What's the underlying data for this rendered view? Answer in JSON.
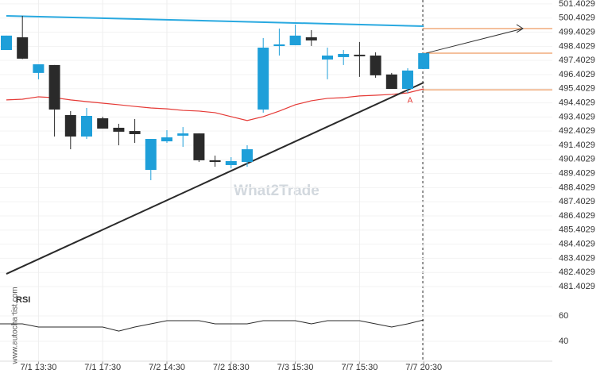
{
  "chart_data": {
    "type": "candlestick",
    "watermark": "What2Trade",
    "source": "www.autochartist.com",
    "categories": [
      null,
      null,
      "7/1 13:30",
      null,
      null,
      null,
      "7/1 17:30",
      null,
      null,
      null,
      "7/2 14:30",
      null,
      null,
      null,
      "7/2 18:30",
      null,
      null,
      null,
      "7/3 15:30",
      null,
      null,
      null,
      "7/7 15:30",
      null,
      null,
      null,
      "7/7 20:30"
    ],
    "open": [
      498.14,
      499.04,
      496.52,
      497.08,
      493.54,
      492.02,
      493.31,
      492.64,
      492.41,
      489.66,
      491.68,
      492.08,
      492.24,
      490.34,
      490.0,
      490.22,
      493.93,
      498.42,
      498.48,
      499.04,
      497.47,
      497.64,
      497.81,
      497.75,
      496.41,
      495.39,
      496.8
    ],
    "high": [
      499.16,
      500.56,
      497.13,
      497.08,
      493.82,
      494.04,
      493.42,
      492.92,
      493.26,
      491.85,
      492.47,
      492.69,
      492.24,
      490.67,
      490.56,
      491.4,
      498.99,
      499.66,
      499.94,
      499.55,
      498.31,
      498.14,
      498.71,
      497.98,
      496.52,
      496.85,
      497.92
    ],
    "low": [
      498.14,
      497.5,
      496.07,
      492.02,
      491.12,
      491.85,
      492.58,
      491.4,
      491.57,
      488.93,
      491.57,
      491.29,
      490.22,
      489.88,
      489.77,
      489.88,
      493.71,
      497.75,
      498.48,
      498.43,
      496.07,
      497.08,
      496.24,
      496.18,
      495.39,
      495.11,
      496.8
    ],
    "close": [
      499.16,
      497.53,
      497.13,
      493.93,
      492.02,
      493.48,
      492.58,
      492.36,
      492.19,
      491.85,
      491.96,
      492.24,
      490.34,
      490.22,
      490.28,
      491.12,
      498.31,
      498.54,
      499.16,
      498.82,
      497.75,
      497.86,
      497.7,
      496.35,
      495.39,
      496.69,
      497.92
    ],
    "up_color": "#1e9fd9",
    "down_color": "#2a2a2a",
    "moving_average": {
      "color": "#e53935",
      "values": [
        494.61,
        494.66,
        494.83,
        494.77,
        494.61,
        494.49,
        494.38,
        494.27,
        494.15,
        494.04,
        493.98,
        493.87,
        493.82,
        493.71,
        493.43,
        493.15,
        493.43,
        493.82,
        494.27,
        494.55,
        494.72,
        494.77,
        494.89,
        494.94,
        495.0,
        495.11,
        495.39
      ]
    },
    "trend_lines": [
      {
        "color": "#29a9e0",
        "start": 500.56,
        "end": 499.83
      },
      {
        "color": "#2a2a2a",
        "start": 482.3,
        "end": 495.84
      }
    ],
    "levels": {
      "color": "#e8823a",
      "values": [
        499.66,
        497.92,
        495.33
      ]
    },
    "annotation": "A",
    "ylim": [
      480.9,
      501.68
    ],
    "yticks": [
      481.4029,
      482.4029,
      483.4029,
      484.4029,
      485.4029,
      486.4029,
      487.4029,
      488.4029,
      489.4029,
      490.4029,
      491.4029,
      492.4029,
      493.4029,
      494.4029,
      495.4029,
      496.4029,
      497.4029,
      498.4029,
      499.4029,
      500.4029,
      501.4029
    ],
    "rsi": {
      "label": "RSI",
      "color": "#2a2a2a",
      "ylim": [
        24.4,
        74.4
      ],
      "yticks": [
        40,
        60
      ],
      "values": [
        53.8,
        53.8,
        51.3,
        51.3,
        51.3,
        51.3,
        51.3,
        48.1,
        51.3,
        53.8,
        56.3,
        56.3,
        56.3,
        53.8,
        53.8,
        53.8,
        56.3,
        56.3,
        56.3,
        53.8,
        56.3,
        56.3,
        56.3,
        53.8,
        51.3,
        53.8,
        56.9
      ]
    },
    "grid": true
  }
}
